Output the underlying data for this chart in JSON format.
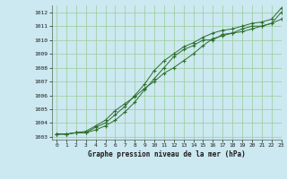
{
  "background_color": "#cce8f0",
  "grid_color": "#99cc99",
  "line_color": "#2d6e2d",
  "xlabel": "Graphe pression niveau de la mer (hPa)",
  "xlim": [
    -0.5,
    23
  ],
  "ylim": [
    1002.8,
    1012.5
  ],
  "yticks": [
    1003,
    1004,
    1005,
    1006,
    1007,
    1008,
    1009,
    1010,
    1011,
    1012
  ],
  "xticks": [
    0,
    1,
    2,
    3,
    4,
    5,
    6,
    7,
    8,
    9,
    10,
    11,
    12,
    13,
    14,
    15,
    16,
    17,
    18,
    19,
    20,
    21,
    22,
    23
  ],
  "series1_x": [
    0,
    1,
    2,
    3,
    4,
    5,
    6,
    7,
    8,
    9,
    10,
    11,
    12,
    13,
    14,
    15,
    16,
    17,
    18,
    19,
    20,
    21,
    22,
    23
  ],
  "series1_y": [
    1003.2,
    1003.2,
    1003.3,
    1003.3,
    1003.5,
    1003.8,
    1004.2,
    1004.8,
    1005.5,
    1006.4,
    1007.2,
    1008.0,
    1008.8,
    1009.3,
    1009.6,
    1010.0,
    1010.0,
    1010.4,
    1010.5,
    1010.8,
    1011.0,
    1011.0,
    1011.2,
    1012.0
  ],
  "series2_x": [
    0,
    1,
    2,
    3,
    4,
    5,
    6,
    7,
    8,
    9,
    10,
    11,
    12,
    13,
    14,
    15,
    16,
    17,
    18,
    19,
    20,
    21,
    22,
    23
  ],
  "series2_y": [
    1003.2,
    1003.2,
    1003.3,
    1003.3,
    1003.7,
    1004.0,
    1004.6,
    1005.2,
    1006.0,
    1006.8,
    1007.8,
    1008.5,
    1009.0,
    1009.5,
    1009.8,
    1010.2,
    1010.5,
    1010.7,
    1010.8,
    1011.0,
    1011.2,
    1011.3,
    1011.5,
    1012.3
  ],
  "series3_x": [
    0,
    1,
    2,
    3,
    4,
    5,
    6,
    7,
    8,
    9,
    10,
    11,
    12,
    13,
    14,
    15,
    16,
    17,
    18,
    19,
    20,
    21,
    22,
    23
  ],
  "series3_y": [
    1003.2,
    1003.2,
    1003.3,
    1003.4,
    1003.8,
    1004.2,
    1004.9,
    1005.4,
    1005.9,
    1006.5,
    1007.0,
    1007.6,
    1008.0,
    1008.5,
    1009.0,
    1009.6,
    1010.1,
    1010.3,
    1010.5,
    1010.6,
    1010.8,
    1011.0,
    1011.2,
    1011.5
  ],
  "tick_fontsize": 4.5,
  "xlabel_fontsize": 5.5,
  "figsize": [
    3.2,
    2.0
  ],
  "dpi": 100
}
